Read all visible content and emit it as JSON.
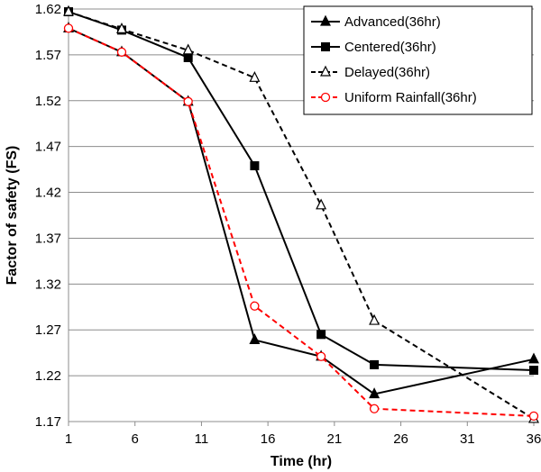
{
  "chart_data": {
    "type": "line",
    "xlabel": "Time (hr)",
    "ylabel": "Factor of safety (FS)",
    "xlim": [
      1,
      36
    ],
    "ylim": [
      1.17,
      1.62
    ],
    "x_ticks": [
      "1",
      "6",
      "11",
      "16",
      "21",
      "26",
      "31",
      "36"
    ],
    "y_ticks": [
      "1.62",
      "1.57",
      "1.52",
      "1.47",
      "1.42",
      "1.37",
      "1.32",
      "1.27",
      "1.22",
      "1.17"
    ],
    "grid": "horizontal",
    "legend_position": "top-right",
    "series": [
      {
        "name": "Advanced(36hr)",
        "color": "#000000",
        "line_style": "solid",
        "marker": "filled-triangle",
        "x": [
          1,
          5,
          10,
          15,
          20,
          24,
          36
        ],
        "y": [
          1.599,
          1.573,
          1.519,
          1.259,
          1.241,
          1.2,
          1.238
        ]
      },
      {
        "name": "Centered(36hr)",
        "color": "#000000",
        "line_style": "solid",
        "marker": "filled-square",
        "x": [
          1,
          5,
          10,
          15,
          20,
          24,
          36
        ],
        "y": [
          1.617,
          1.597,
          1.567,
          1.449,
          1.265,
          1.232,
          1.226
        ]
      },
      {
        "name": "Delayed(36hr)",
        "color": "#000000",
        "line_style": "dashed",
        "marker": "open-triangle",
        "x": [
          1,
          5,
          10,
          15,
          20,
          24,
          36
        ],
        "y": [
          1.617,
          1.598,
          1.575,
          1.545,
          1.406,
          1.28,
          1.173
        ]
      },
      {
        "name": "Uniform Rainfall(36hr)",
        "color": "#ff0000",
        "line_style": "dashed",
        "marker": "open-circle",
        "x": [
          1,
          5,
          10,
          15,
          20,
          24,
          36
        ],
        "y": [
          1.599,
          1.573,
          1.519,
          1.296,
          1.241,
          1.184,
          1.176
        ]
      }
    ]
  }
}
